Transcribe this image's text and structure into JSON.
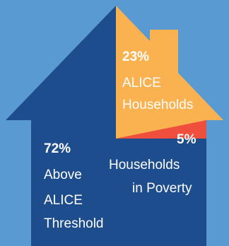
{
  "colors": {
    "background": "#5a9ad2",
    "above_alice": "#1d4d8c",
    "alice": "#f9b24f",
    "poverty": "#ef4f3c",
    "text": "#ffffff"
  },
  "chart_data": {
    "type": "pie",
    "title": "",
    "segments": [
      {
        "value": 72,
        "label": "72%",
        "name_lines": [
          "Above",
          "ALICE",
          "Threshold"
        ],
        "color": "#1d4d8c"
      },
      {
        "value": 23,
        "label": "23%",
        "name_lines": [
          "ALICE",
          "Households"
        ],
        "color": "#f9b24f"
      },
      {
        "value": 5,
        "label": "5%",
        "name_lines": [
          "Households",
          "in Poverty"
        ],
        "color": "#ef4f3c"
      }
    ]
  }
}
